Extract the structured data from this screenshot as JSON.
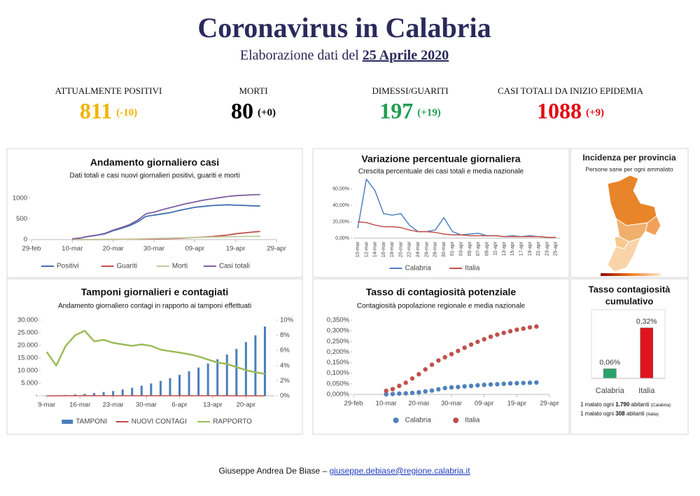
{
  "header": {
    "title": "Coronavirus in Calabria",
    "subtitle": "Elaborazione dati del ",
    "date": "25 Aprile 2020"
  },
  "kpis": [
    {
      "label": "ATTUALMENTE POSITIVI",
      "value": "811",
      "delta": "(-10)",
      "color": "#f0b400"
    },
    {
      "label": "MORTI",
      "value": "80",
      "delta": "(+0)",
      "color": "#000000"
    },
    {
      "label": "DIMESSI/GUARITI",
      "value": "197",
      "delta": "(+19)",
      "color": "#1f9e52"
    },
    {
      "label": "CASI TOTALI DA INIZIO EPIDEMIA",
      "value": "1088",
      "delta": "(+9)",
      "color": "#e00c15"
    }
  ],
  "map": {
    "title": "Incidenza per provincia",
    "subtitle": "Persone sane per ogni ammalato"
  },
  "chart_data": [
    {
      "type": "line",
      "title": "Andamento giornaliero casi",
      "subtitle": "Dati totali e casi nuovi giornalieri positivi, guariti e morti",
      "x": [
        10,
        12,
        14,
        16,
        18,
        20,
        22,
        24,
        26,
        28,
        30,
        32,
        34,
        36,
        38,
        40,
        42,
        44,
        46,
        48,
        50,
        52,
        54,
        56
      ],
      "xlim": [
        0,
        60
      ],
      "xticks": [
        {
          "value": 0,
          "label": "29-feb"
        },
        {
          "value": 10,
          "label": "10-mar"
        },
        {
          "value": 20,
          "label": "20-mar"
        },
        {
          "value": 30,
          "label": "30-mar"
        },
        {
          "value": 40,
          "label": "09-apr"
        },
        {
          "value": 50,
          "label": "19-apr"
        },
        {
          "value": 60,
          "label": "29-apr"
        }
      ],
      "ylim": [
        0,
        1200
      ],
      "yticks": [
        0,
        500,
        1000
      ],
      "grid": false,
      "series": [
        {
          "name": "Positivi",
          "color": "#3f6fb0",
          "values": [
            17,
            38,
            76,
            104,
            140,
            215,
            270,
            335,
            430,
            560,
            590,
            620,
            650,
            700,
            740,
            780,
            800,
            820,
            830,
            840,
            830,
            825,
            815,
            811
          ]
        },
        {
          "name": "Guariti",
          "color": "#c0504d",
          "values": [
            0,
            0,
            1,
            2,
            3,
            4,
            6,
            8,
            10,
            12,
            15,
            20,
            25,
            30,
            40,
            50,
            60,
            75,
            90,
            110,
            140,
            160,
            180,
            197
          ]
        },
        {
          "name": "Morti",
          "color": "#c3c99a",
          "values": [
            1,
            1,
            2,
            3,
            4,
            5,
            8,
            12,
            15,
            20,
            25,
            30,
            35,
            40,
            45,
            50,
            55,
            60,
            65,
            70,
            73,
            75,
            78,
            80
          ]
        },
        {
          "name": "Casi totali",
          "color": "#7f5fa0",
          "values": [
            18,
            40,
            80,
            110,
            150,
            230,
            290,
            360,
            470,
            620,
            660,
            720,
            770,
            820,
            870,
            910,
            950,
            980,
            1010,
            1040,
            1060,
            1070,
            1080,
            1088
          ]
        }
      ]
    },
    {
      "type": "line",
      "title": "Variazione percentuale giornaliera",
      "subtitle": "Crescita percentuale dei casi totali e media nazionale",
      "categories": [
        "10-mar",
        "12-mar",
        "14-mar",
        "16-mar",
        "18-mar",
        "20-mar",
        "22-mar",
        "24-mar",
        "26-mar",
        "28-mar",
        "30-mar",
        "01-apr",
        "03-apr",
        "05-apr",
        "07-apr",
        "09-apr",
        "11-apr",
        "13-apr",
        "15-apr",
        "17-apr",
        "19-apr",
        "21-apr",
        "23-apr",
        "25-apr"
      ],
      "ylim": [
        0,
        70
      ],
      "yticks": [
        {
          "value": 0,
          "label": "0,00%"
        },
        {
          "value": 20,
          "label": "20,00%"
        },
        {
          "value": 40,
          "label": "40,00%"
        },
        {
          "value": 60,
          "label": "60,00%"
        }
      ],
      "grid": false,
      "series": [
        {
          "name": "Calabria",
          "color": "#4f81bd",
          "values": [
            12,
            72,
            58,
            30,
            28,
            30,
            16,
            8,
            8,
            10,
            25,
            8,
            4,
            5,
            6,
            3,
            3,
            2,
            3,
            2,
            3,
            2,
            1,
            1
          ]
        },
        {
          "name": "Italia",
          "color": "#c0504d",
          "values": [
            20,
            19,
            16,
            14,
            14,
            13,
            10,
            8,
            8,
            7,
            5,
            4,
            4,
            3,
            3,
            3,
            3,
            2,
            2,
            2,
            2,
            2,
            1,
            1
          ]
        }
      ]
    },
    {
      "type": "combo",
      "title": "Tamponi giornalieri e contagiati",
      "subtitle": "Andamento giornaliero contagi in rapporto ai tamponi effettuati",
      "x": [
        0,
        2,
        4,
        6,
        8,
        10,
        12,
        14,
        16,
        18,
        20,
        22,
        24,
        26,
        28,
        30,
        32,
        34,
        36,
        38,
        40,
        42,
        44,
        46
      ],
      "xlim": [
        -1,
        48
      ],
      "xticks": [
        {
          "value": 0,
          "label": "9-mar"
        },
        {
          "value": 7,
          "label": "16-mar"
        },
        {
          "value": 14,
          "label": "23-mar"
        },
        {
          "value": 21,
          "label": "30-mar"
        },
        {
          "value": 28,
          "label": "6-apr"
        },
        {
          "value": 35,
          "label": "13-apr"
        },
        {
          "value": 42,
          "label": "20-apr"
        }
      ],
      "ylim": [
        0,
        30000
      ],
      "yticks": [
        {
          "value": 0,
          "label": "-"
        },
        {
          "value": 5000,
          "label": "5.000"
        },
        {
          "value": 10000,
          "label": "10.000"
        },
        {
          "value": 15000,
          "label": "15.000"
        },
        {
          "value": 20000,
          "label": "20.000"
        },
        {
          "value": 25000,
          "label": "25.000"
        },
        {
          "value": 30000,
          "label": "30.000"
        }
      ],
      "y2lim": [
        0,
        10
      ],
      "y2ticks": [
        {
          "value": 0,
          "label": "0%"
        },
        {
          "value": 2,
          "label": "2%"
        },
        {
          "value": 4,
          "label": "4%"
        },
        {
          "value": 6,
          "label": "6%"
        },
        {
          "value": 8,
          "label": "8%"
        },
        {
          "value": 10,
          "label": "10%"
        }
      ],
      "grid": false,
      "series": [
        {
          "name": "TAMPONI",
          "type": "bar",
          "color": "#4a7ebb",
          "values": [
            100,
            200,
            350,
            550,
            800,
            1100,
            1500,
            1900,
            2500,
            3200,
            4000,
            4900,
            5900,
            7000,
            8300,
            9700,
            11200,
            12800,
            14500,
            16400,
            18600,
            21300,
            24000,
            27500
          ]
        },
        {
          "name": "NUOVI CONTAGI",
          "type": "line",
          "color": "#be4b48",
          "values": [
            6,
            8,
            14,
            20,
            25,
            25,
            30,
            25,
            30,
            28,
            30,
            25,
            30,
            25,
            20,
            20,
            22,
            18,
            15,
            15,
            10,
            12,
            8,
            9
          ]
        },
        {
          "name": "RAPPORTO",
          "type": "line",
          "axis": "y2",
          "color": "#9bbb59",
          "values": [
            5.8,
            4.0,
            6.6,
            8.0,
            8.6,
            7.2,
            7.4,
            7.0,
            6.8,
            6.6,
            6.8,
            6.6,
            6.1,
            5.9,
            5.7,
            5.5,
            5.2,
            4.8,
            4.4,
            4.2,
            3.8,
            3.4,
            3.1,
            2.9
          ]
        }
      ]
    },
    {
      "type": "scatter",
      "title": "Tasso di contagiosità potenziale",
      "subtitle": "Contagiosità popolazione regionale e media nazionale",
      "x": [
        10,
        12,
        14,
        16,
        18,
        20,
        22,
        24,
        26,
        28,
        30,
        32,
        34,
        36,
        38,
        40,
        42,
        44,
        46,
        48,
        50,
        52,
        54,
        56
      ],
      "xlim": [
        0,
        60
      ],
      "xticks": [
        {
          "value": 0,
          "label": "29-feb"
        },
        {
          "value": 10,
          "label": "10-mar"
        },
        {
          "value": 20,
          "label": "20-mar"
        },
        {
          "value": 30,
          "label": "30-mar"
        },
        {
          "value": 40,
          "label": "09-apr"
        },
        {
          "value": 50,
          "label": "19-apr"
        },
        {
          "value": 60,
          "label": "29-apr"
        }
      ],
      "ylim": [
        0,
        0.35
      ],
      "yticks": [
        {
          "value": 0,
          "label": "0,000%"
        },
        {
          "value": 0.05,
          "label": "0,050%"
        },
        {
          "value": 0.1,
          "label": "0,100%"
        },
        {
          "value": 0.15,
          "label": "0,150%"
        },
        {
          "value": 0.2,
          "label": "0,200%"
        },
        {
          "value": 0.25,
          "label": "0,250%"
        },
        {
          "value": 0.3,
          "label": "0,300%"
        },
        {
          "value": 0.35,
          "label": "0,350%"
        }
      ],
      "grid": false,
      "series": [
        {
          "name": "Calabria",
          "color": "#4f81bd",
          "values": [
            0.001,
            0.002,
            0.004,
            0.005,
            0.007,
            0.01,
            0.014,
            0.018,
            0.024,
            0.03,
            0.033,
            0.035,
            0.038,
            0.04,
            0.043,
            0.045,
            0.047,
            0.048,
            0.05,
            0.052,
            0.053,
            0.054,
            0.055,
            0.056
          ]
        },
        {
          "name": "Italia",
          "color": "#c0504d",
          "values": [
            0.017,
            0.025,
            0.04,
            0.055,
            0.075,
            0.095,
            0.118,
            0.14,
            0.16,
            0.175,
            0.19,
            0.205,
            0.22,
            0.235,
            0.248,
            0.26,
            0.272,
            0.282,
            0.29,
            0.298,
            0.305,
            0.31,
            0.316,
            0.32
          ]
        }
      ]
    },
    {
      "type": "bar",
      "title": [
        "Tasso contagiosità",
        "cumulativo"
      ],
      "categories": [
        "Calabria",
        "Italia"
      ],
      "values": [
        0.06,
        0.32
      ],
      "value_labels": [
        "0,06%",
        "0,32%"
      ],
      "colors": [
        "#2aa36b",
        "#e0141e"
      ],
      "notes": [
        {
          "pre": "1 malato ogni ",
          "num": "1.790",
          "post": " abitanti ",
          "region": "(Calabria)"
        },
        {
          "pre": "1 malato ogni ",
          "num": "308",
          "post": " abitanti ",
          "region": "(Italia)"
        }
      ]
    }
  ],
  "footer": {
    "author": "Giuseppe Andrea De Biase – ",
    "email": "giuseppe.debiase@regione.calabria.it"
  }
}
